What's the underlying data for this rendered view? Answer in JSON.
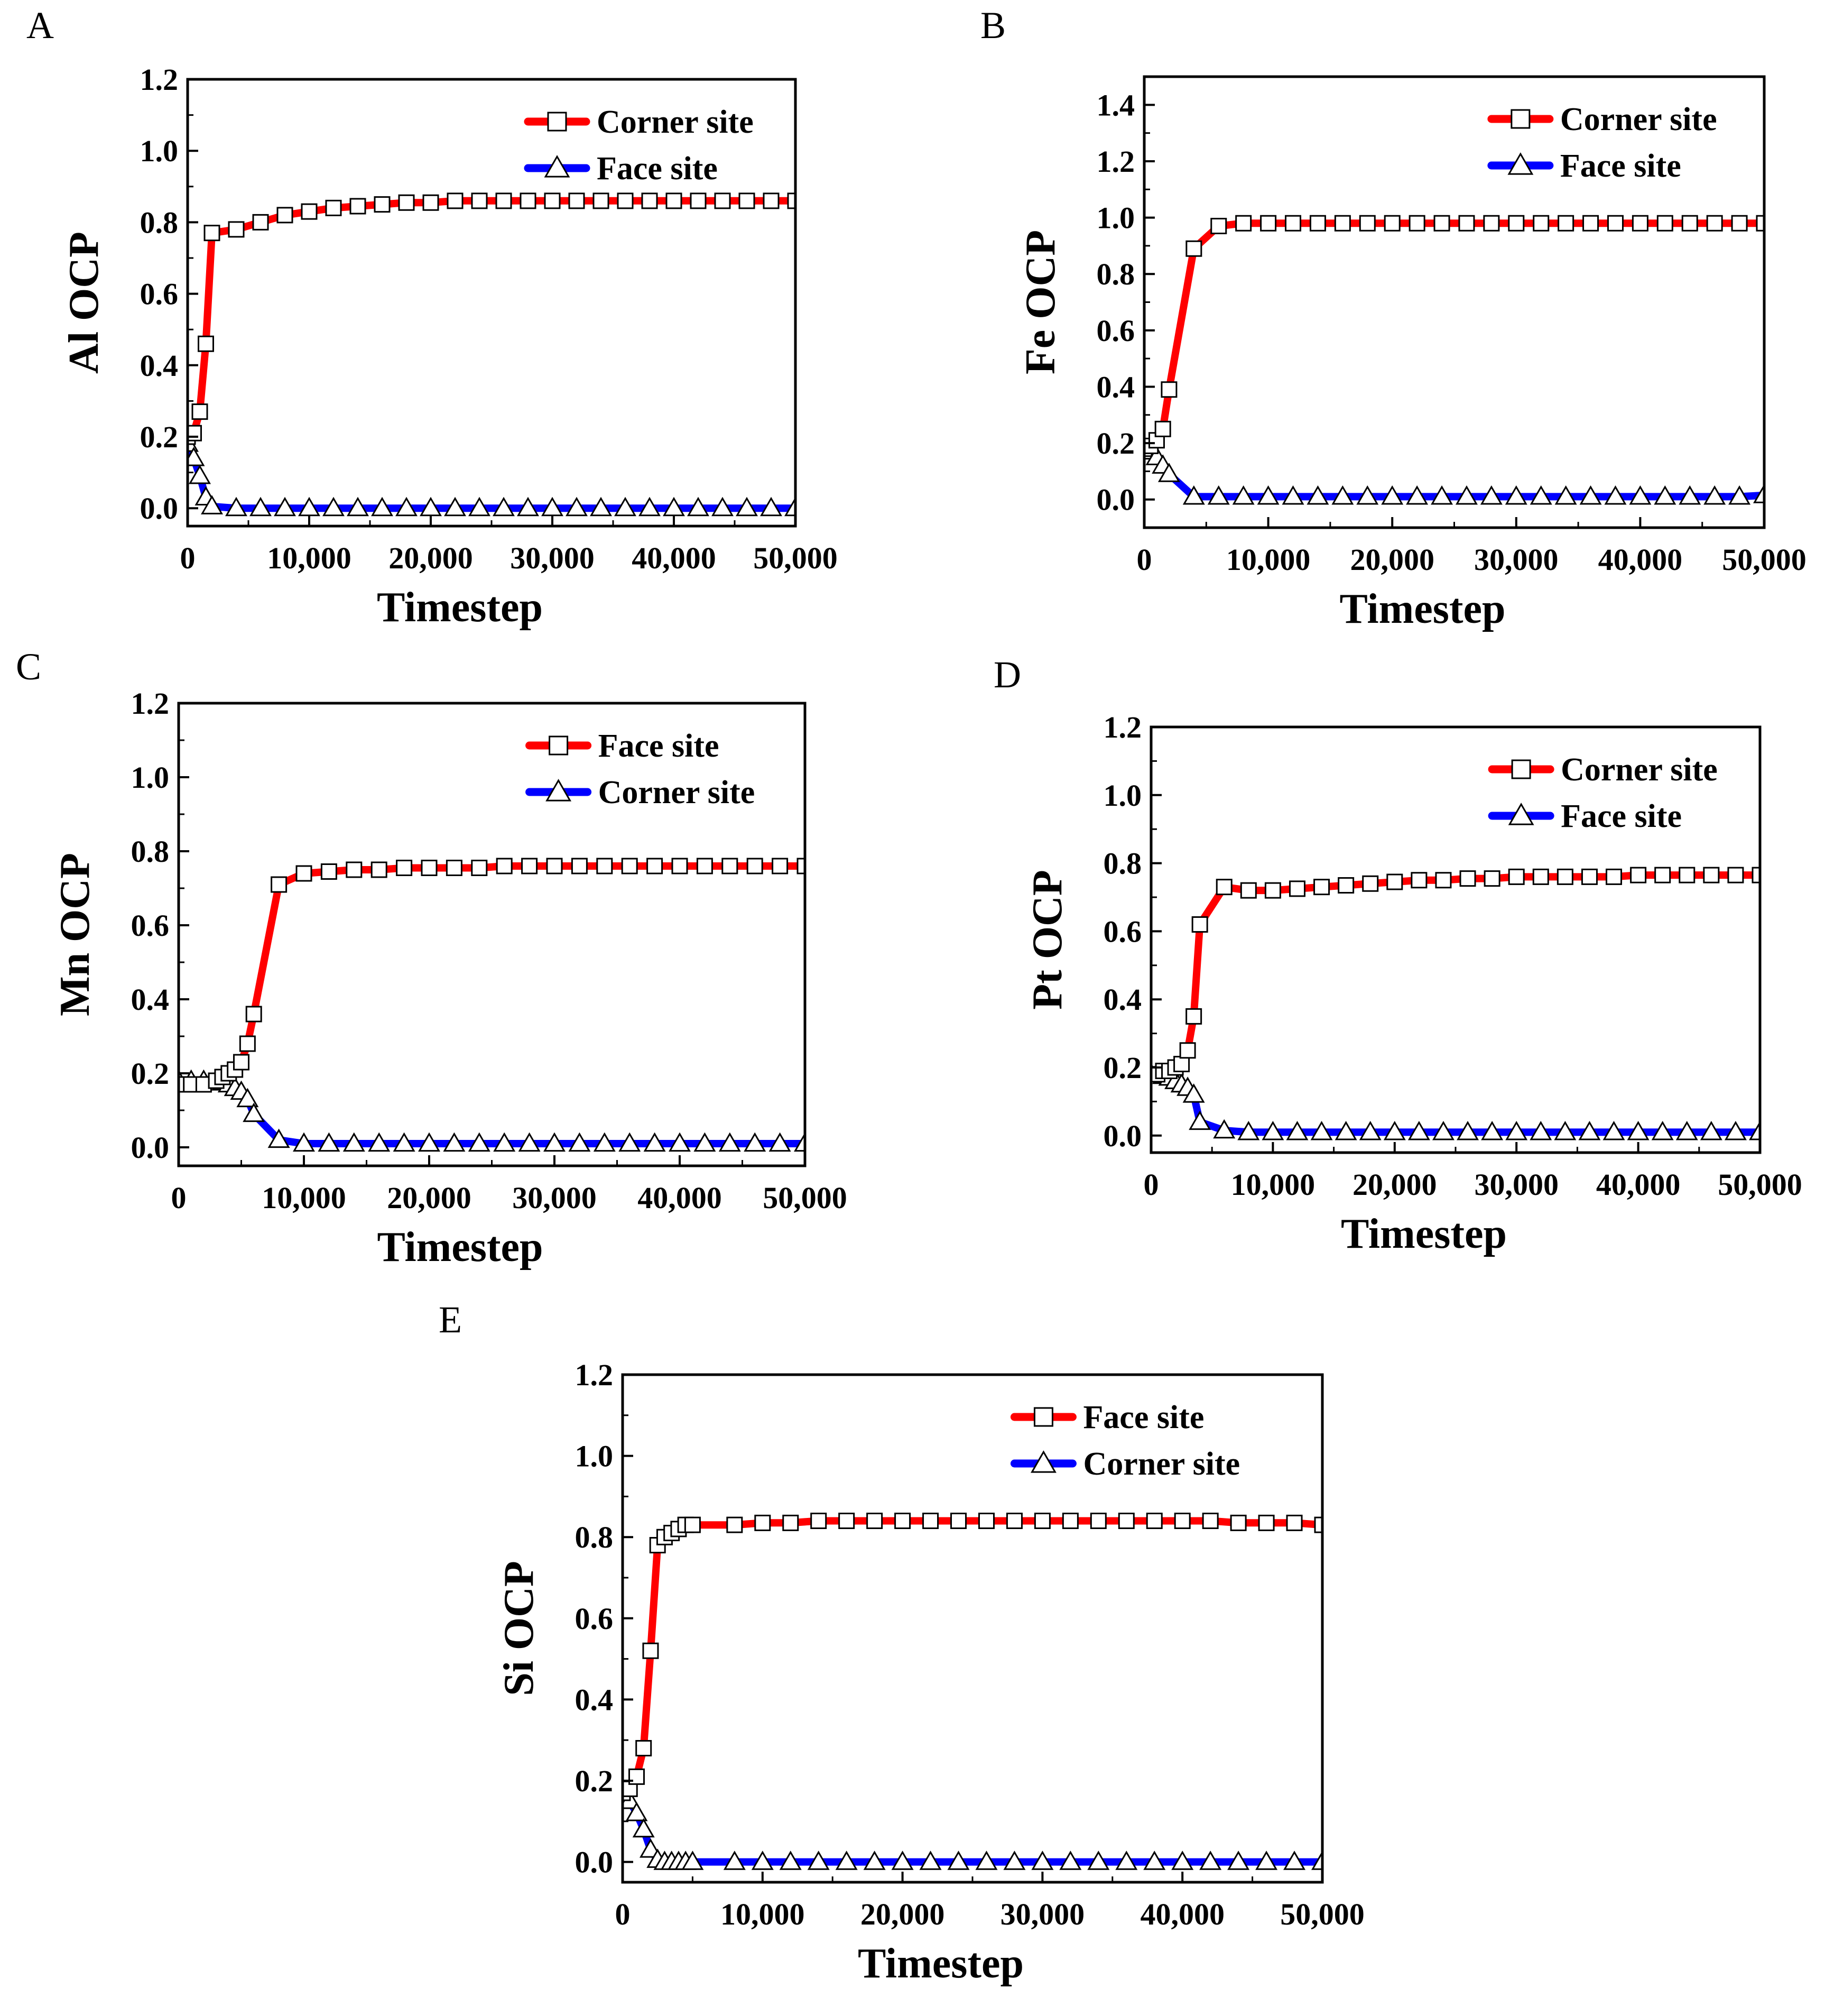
{
  "figure": {
    "series_colors": {
      "red": "#ff0000",
      "blue": "#0000ff"
    }
  },
  "chart_data": [
    {
      "id": "A",
      "type": "line",
      "panel_label": "A",
      "xlabel": "Timestep",
      "ylabel": "Al OCP",
      "xlim": [
        0,
        50000
      ],
      "ylim": [
        -0.05,
        1.2
      ],
      "xticks": [
        0,
        10000,
        20000,
        30000,
        40000,
        50000
      ],
      "xtick_labels": [
        "0",
        "10,000",
        "20,000",
        "30,000",
        "40,000",
        "50,000"
      ],
      "yticks": [
        0.0,
        0.2,
        0.4,
        0.6,
        0.8,
        1.0,
        1.2
      ],
      "ytick_labels": [
        "0.0",
        "0.2",
        "0.4",
        "0.6",
        "0.8",
        "1.0",
        "1.2"
      ],
      "legend": {
        "position": "top-right"
      },
      "series": [
        {
          "name": "Corner site",
          "color": "#ff0000",
          "marker": "square",
          "x": [
            0,
            500,
            1000,
            1500,
            2000,
            4000,
            6000,
            8000,
            10000,
            12000,
            14000,
            16000,
            18000,
            20000,
            22000,
            24000,
            26000,
            28000,
            30000,
            32000,
            34000,
            36000,
            38000,
            40000,
            42000,
            44000,
            46000,
            48000,
            50000
          ],
          "y": [
            0.2,
            0.21,
            0.27,
            0.46,
            0.77,
            0.78,
            0.8,
            0.82,
            0.83,
            0.84,
            0.845,
            0.85,
            0.855,
            0.855,
            0.86,
            0.86,
            0.86,
            0.86,
            0.86,
            0.86,
            0.86,
            0.86,
            0.86,
            0.86,
            0.86,
            0.86,
            0.86,
            0.86,
            0.86
          ]
        },
        {
          "name": "Face site",
          "color": "#0000ff",
          "marker": "triangle",
          "x": [
            0,
            500,
            1000,
            1500,
            2000,
            4000,
            6000,
            8000,
            10000,
            12000,
            14000,
            16000,
            18000,
            20000,
            22000,
            24000,
            26000,
            28000,
            30000,
            32000,
            34000,
            36000,
            38000,
            40000,
            42000,
            44000,
            46000,
            48000,
            50000
          ],
          "y": [
            0.18,
            0.14,
            0.09,
            0.03,
            0.005,
            0.0,
            0.0,
            0.0,
            0.0,
            0.0,
            0.0,
            0.0,
            0.0,
            0.0,
            0.0,
            0.0,
            0.0,
            0.0,
            0.0,
            0.0,
            0.0,
            0.0,
            0.0,
            0.0,
            0.0,
            0.0,
            0.0,
            0.0,
            0.0
          ]
        }
      ]
    },
    {
      "id": "B",
      "type": "line",
      "panel_label": "B",
      "xlabel": "Timestep",
      "ylabel": "Fe OCP",
      "xlim": [
        0,
        50000
      ],
      "ylim": [
        -0.1,
        1.5
      ],
      "xticks": [
        0,
        10000,
        20000,
        30000,
        40000,
        50000
      ],
      "xtick_labels": [
        "0",
        "10,000",
        "20,000",
        "30,000",
        "40,000",
        "50,000"
      ],
      "yticks": [
        0.0,
        0.2,
        0.4,
        0.6,
        0.8,
        1.0,
        1.2,
        1.4
      ],
      "ytick_labels": [
        "0.0",
        "0.2",
        "0.4",
        "0.6",
        "0.8",
        "1.0",
        "1.2",
        "1.4"
      ],
      "legend": {
        "position": "top-right"
      },
      "series": [
        {
          "name": "Corner site",
          "color": "#ff0000",
          "marker": "square",
          "x": [
            0,
            500,
            1000,
            1500,
            2000,
            4000,
            6000,
            8000,
            10000,
            12000,
            14000,
            16000,
            18000,
            20000,
            22000,
            24000,
            26000,
            28000,
            30000,
            32000,
            34000,
            36000,
            38000,
            40000,
            42000,
            44000,
            46000,
            48000,
            50000
          ],
          "y": [
            0.18,
            0.19,
            0.21,
            0.25,
            0.39,
            0.89,
            0.97,
            0.98,
            0.98,
            0.98,
            0.98,
            0.98,
            0.98,
            0.98,
            0.98,
            0.98,
            0.98,
            0.98,
            0.98,
            0.98,
            0.98,
            0.98,
            0.98,
            0.98,
            0.98,
            0.98,
            0.98,
            0.98,
            0.98
          ]
        },
        {
          "name": "Face site",
          "color": "#0000ff",
          "marker": "triangle",
          "x": [
            0,
            500,
            1000,
            1500,
            2000,
            4000,
            6000,
            8000,
            10000,
            12000,
            14000,
            16000,
            18000,
            20000,
            22000,
            24000,
            26000,
            28000,
            30000,
            32000,
            34000,
            36000,
            38000,
            40000,
            42000,
            44000,
            46000,
            48000,
            50000
          ],
          "y": [
            0.18,
            0.17,
            0.15,
            0.12,
            0.09,
            0.01,
            0.01,
            0.01,
            0.01,
            0.01,
            0.01,
            0.01,
            0.01,
            0.01,
            0.01,
            0.01,
            0.01,
            0.01,
            0.01,
            0.01,
            0.01,
            0.01,
            0.01,
            0.01,
            0.01,
            0.01,
            0.01,
            0.01,
            0.015
          ]
        }
      ]
    },
    {
      "id": "C",
      "type": "line",
      "panel_label": "C",
      "xlabel": "Timestep",
      "ylabel": "Mn OCP",
      "xlim": [
        0,
        50000
      ],
      "ylim": [
        -0.05,
        1.2
      ],
      "xticks": [
        0,
        10000,
        20000,
        30000,
        40000,
        50000
      ],
      "xtick_labels": [
        "0",
        "10,000",
        "20,000",
        "30,000",
        "40,000",
        "50,000"
      ],
      "yticks": [
        0.0,
        0.2,
        0.4,
        0.6,
        0.8,
        1.0,
        1.2
      ],
      "ytick_labels": [
        "0.0",
        "0.2",
        "0.4",
        "0.6",
        "0.8",
        "1.0",
        "1.2"
      ],
      "legend": {
        "position": "top-right"
      },
      "series": [
        {
          "name": "Face site",
          "color": "#ff0000",
          "marker": "square",
          "x": [
            0,
            1000,
            2000,
            3000,
            3500,
            4000,
            4500,
            5000,
            5500,
            6000,
            8000,
            10000,
            12000,
            14000,
            16000,
            18000,
            20000,
            22000,
            24000,
            26000,
            28000,
            30000,
            32000,
            34000,
            36000,
            38000,
            40000,
            42000,
            44000,
            46000,
            48000,
            50000
          ],
          "y": [
            0.17,
            0.17,
            0.17,
            0.18,
            0.19,
            0.2,
            0.21,
            0.23,
            0.28,
            0.36,
            0.71,
            0.74,
            0.745,
            0.75,
            0.75,
            0.755,
            0.755,
            0.755,
            0.755,
            0.76,
            0.76,
            0.76,
            0.76,
            0.76,
            0.76,
            0.76,
            0.76,
            0.76,
            0.76,
            0.76,
            0.76,
            0.76
          ]
        },
        {
          "name": "Corner site",
          "color": "#0000ff",
          "marker": "triangle",
          "x": [
            0,
            1000,
            2000,
            3000,
            3500,
            4000,
            4500,
            5000,
            5500,
            6000,
            8000,
            10000,
            12000,
            14000,
            16000,
            18000,
            20000,
            22000,
            24000,
            26000,
            28000,
            30000,
            32000,
            34000,
            36000,
            38000,
            40000,
            42000,
            44000,
            46000,
            48000,
            50000
          ],
          "y": [
            0.18,
            0.18,
            0.18,
            0.18,
            0.175,
            0.17,
            0.16,
            0.15,
            0.13,
            0.09,
            0.02,
            0.01,
            0.01,
            0.01,
            0.01,
            0.01,
            0.01,
            0.01,
            0.01,
            0.01,
            0.01,
            0.01,
            0.01,
            0.01,
            0.01,
            0.01,
            0.01,
            0.01,
            0.01,
            0.01,
            0.01,
            0.01
          ]
        }
      ]
    },
    {
      "id": "D",
      "type": "line",
      "panel_label": "D",
      "xlabel": "Timestep",
      "ylabel": "Pt OCP",
      "xlim": [
        0,
        50000
      ],
      "ylim": [
        -0.05,
        1.2
      ],
      "xticks": [
        0,
        10000,
        20000,
        30000,
        40000,
        50000
      ],
      "xtick_labels": [
        "0",
        "10,000",
        "20,000",
        "30,000",
        "40,000",
        "50,000"
      ],
      "yticks": [
        0.0,
        0.2,
        0.4,
        0.6,
        0.8,
        1.0,
        1.2
      ],
      "ytick_labels": [
        "0.0",
        "0.2",
        "0.4",
        "0.6",
        "0.8",
        "1.0",
        "1.2"
      ],
      "legend": {
        "position": "top-right"
      },
      "series": [
        {
          "name": "Corner site",
          "color": "#ff0000",
          "marker": "square",
          "x": [
            0,
            500,
            1000,
            1500,
            2000,
            2500,
            3000,
            3500,
            4000,
            6000,
            8000,
            10000,
            12000,
            14000,
            16000,
            18000,
            20000,
            22000,
            24000,
            26000,
            28000,
            30000,
            32000,
            34000,
            36000,
            38000,
            40000,
            42000,
            44000,
            46000,
            48000,
            50000
          ],
          "y": [
            0.18,
            0.18,
            0.19,
            0.19,
            0.2,
            0.21,
            0.25,
            0.35,
            0.62,
            0.73,
            0.72,
            0.72,
            0.725,
            0.73,
            0.735,
            0.74,
            0.745,
            0.75,
            0.75,
            0.755,
            0.755,
            0.76,
            0.76,
            0.76,
            0.76,
            0.76,
            0.765,
            0.765,
            0.765,
            0.765,
            0.765,
            0.765
          ]
        },
        {
          "name": "Face site",
          "color": "#0000ff",
          "marker": "triangle",
          "x": [
            0,
            500,
            1000,
            1500,
            2000,
            2500,
            3000,
            3500,
            4000,
            6000,
            8000,
            10000,
            12000,
            14000,
            16000,
            18000,
            20000,
            22000,
            24000,
            26000,
            28000,
            30000,
            32000,
            34000,
            36000,
            38000,
            40000,
            42000,
            44000,
            46000,
            48000,
            50000
          ],
          "y": [
            0.18,
            0.18,
            0.175,
            0.17,
            0.16,
            0.15,
            0.14,
            0.12,
            0.04,
            0.015,
            0.01,
            0.01,
            0.01,
            0.01,
            0.01,
            0.01,
            0.01,
            0.01,
            0.01,
            0.01,
            0.01,
            0.01,
            0.01,
            0.01,
            0.01,
            0.01,
            0.01,
            0.01,
            0.01,
            0.01,
            0.01,
            0.01
          ]
        }
      ]
    },
    {
      "id": "E",
      "type": "line",
      "panel_label": "E",
      "xlabel": "Timestep",
      "ylabel": "Si OCP",
      "xlim": [
        0,
        50000
      ],
      "ylim": [
        -0.05,
        1.2
      ],
      "xticks": [
        0,
        10000,
        20000,
        30000,
        40000,
        50000
      ],
      "xtick_labels": [
        "0",
        "10,000",
        "20,000",
        "30,000",
        "40,000",
        "50,000"
      ],
      "yticks": [
        0.0,
        0.2,
        0.4,
        0.6,
        0.8,
        1.0,
        1.2
      ],
      "ytick_labels": [
        "0.0",
        "0.2",
        "0.4",
        "0.6",
        "0.8",
        "1.0",
        "1.2"
      ],
      "legend": {
        "position": "top-right"
      },
      "series": [
        {
          "name": "Face site",
          "color": "#ff0000",
          "marker": "square",
          "x": [
            0,
            500,
            1000,
            1500,
            2000,
            2500,
            3000,
            3500,
            4000,
            4500,
            5000,
            8000,
            10000,
            12000,
            14000,
            16000,
            18000,
            20000,
            22000,
            24000,
            26000,
            28000,
            30000,
            32000,
            34000,
            36000,
            38000,
            40000,
            42000,
            44000,
            46000,
            48000,
            50000
          ],
          "y": [
            0.17,
            0.18,
            0.21,
            0.28,
            0.52,
            0.78,
            0.8,
            0.81,
            0.82,
            0.83,
            0.83,
            0.83,
            0.835,
            0.835,
            0.84,
            0.84,
            0.84,
            0.84,
            0.84,
            0.84,
            0.84,
            0.84,
            0.84,
            0.84,
            0.84,
            0.84,
            0.84,
            0.84,
            0.84,
            0.835,
            0.835,
            0.835,
            0.83
          ]
        },
        {
          "name": "Corner site",
          "color": "#0000ff",
          "marker": "triangle",
          "x": [
            0,
            500,
            1000,
            1500,
            2000,
            2500,
            3000,
            3500,
            4000,
            4500,
            5000,
            8000,
            10000,
            12000,
            14000,
            16000,
            18000,
            20000,
            22000,
            24000,
            26000,
            28000,
            30000,
            32000,
            34000,
            36000,
            38000,
            40000,
            42000,
            44000,
            46000,
            48000,
            50000
          ],
          "y": [
            0.18,
            0.15,
            0.12,
            0.08,
            0.03,
            0.005,
            0.0,
            0.0,
            0.0,
            0.0,
            0.0,
            0.0,
            0.0,
            0.0,
            0.0,
            0.0,
            0.0,
            0.0,
            0.0,
            0.0,
            0.0,
            0.0,
            0.0,
            0.0,
            0.0,
            0.0,
            0.0,
            0.0,
            0.0,
            0.0,
            0.0,
            0.0,
            0.0
          ]
        }
      ]
    }
  ]
}
